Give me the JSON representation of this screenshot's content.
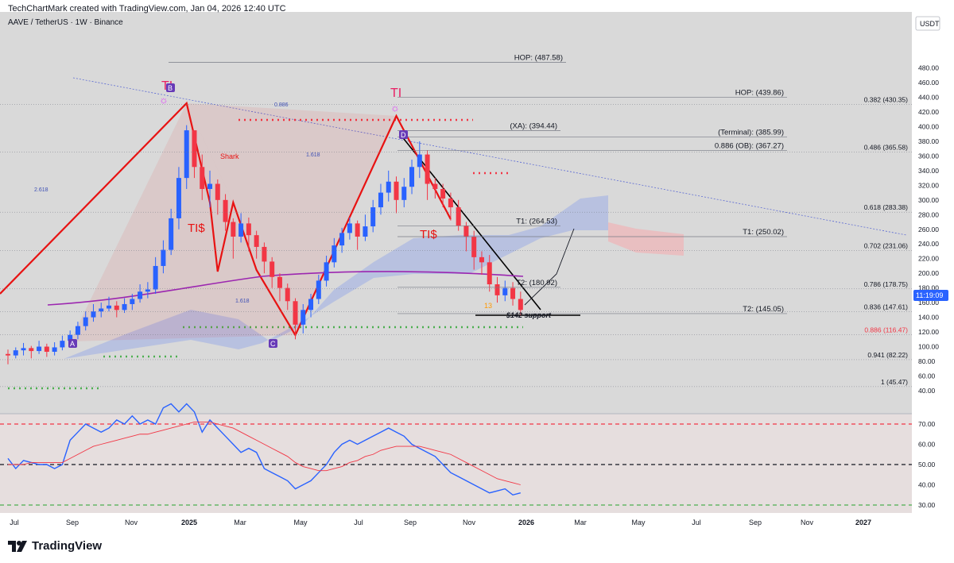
{
  "header": {
    "attribution": "TechChartMark created with TradingView.com, Jan 04, 2026 12:40 UTC",
    "symbol": "AAVE / TetherUS · 1W · Binance"
  },
  "footer": {
    "brand": "TradingView"
  },
  "colors": {
    "up": "#2962ff",
    "down": "#f23645",
    "rsi": "#2962ff",
    "rsi_ma": "#f23645",
    "ema200": "#9c27b0",
    "pattern": "#e81212",
    "cloud_up": "#90a4e8",
    "cloud_down": "#f6a9ad"
  },
  "chart_data": [
    {
      "type": "candlestick",
      "title": "",
      "currency_label": "USDT",
      "current_price": "11:19:09",
      "ylim": [
        20,
        500
      ],
      "y_ticks": [
        40,
        60,
        80,
        100,
        120,
        140,
        160,
        180,
        200,
        220,
        240,
        260,
        280,
        300,
        320,
        340,
        360,
        380,
        400,
        420,
        440,
        460,
        480
      ],
      "x_ticks": [
        "Jul",
        "Sep",
        "Nov",
        "2025",
        "Mar",
        "May",
        "Jul",
        "Sep",
        "Nov",
        "2026",
        "Mar",
        "May",
        "Jul",
        "Sep",
        "Nov",
        "2027"
      ],
      "candles": [
        [
          90,
          88,
          96,
          76
        ],
        [
          88,
          95,
          99,
          84
        ],
        [
          95,
          98,
          105,
          88
        ],
        [
          98,
          94,
          101,
          84
        ],
        [
          94,
          100,
          108,
          90
        ],
        [
          100,
          93,
          104,
          86
        ],
        [
          93,
          99,
          106,
          88
        ],
        [
          99,
          108,
          115,
          95
        ],
        [
          108,
          116,
          122,
          104
        ],
        [
          116,
          128,
          134,
          110
        ],
        [
          128,
          140,
          148,
          122
        ],
        [
          140,
          148,
          158,
          134
        ],
        [
          148,
          152,
          160,
          140
        ],
        [
          152,
          156,
          168,
          148
        ],
        [
          156,
          150,
          162,
          140
        ],
        [
          150,
          158,
          166,
          146
        ],
        [
          158,
          165,
          172,
          150
        ],
        [
          165,
          175,
          185,
          160
        ],
        [
          175,
          178,
          188,
          166
        ],
        [
          178,
          210,
          222,
          172
        ],
        [
          210,
          232,
          245,
          200
        ],
        [
          232,
          275,
          288,
          225
        ],
        [
          275,
          330,
          345,
          260
        ],
        [
          330,
          395,
          402,
          315
        ],
        [
          395,
          345,
          380,
          330
        ],
        [
          345,
          315,
          362,
          300
        ],
        [
          315,
          322,
          340,
          290
        ],
        [
          322,
          300,
          328,
          280
        ],
        [
          300,
          270,
          308,
          258
        ],
        [
          270,
          250,
          275,
          220
        ],
        [
          250,
          268,
          282,
          242
        ],
        [
          268,
          252,
          276,
          230
        ],
        [
          252,
          236,
          258,
          220
        ],
        [
          236,
          216,
          242,
          200
        ],
        [
          216,
          195,
          222,
          180
        ],
        [
          195,
          180,
          200,
          162
        ],
        [
          180,
          162,
          186,
          150
        ],
        [
          162,
          130,
          166,
          110
        ],
        [
          130,
          150,
          158,
          118
        ],
        [
          150,
          165,
          172,
          140
        ],
        [
          165,
          190,
          198,
          158
        ],
        [
          190,
          215,
          224,
          182
        ],
        [
          215,
          238,
          248,
          208
        ],
        [
          238,
          255,
          262,
          228
        ],
        [
          255,
          268,
          276,
          246
        ],
        [
          268,
          250,
          272,
          232
        ],
        [
          250,
          264,
          280,
          244
        ],
        [
          264,
          290,
          300,
          256
        ],
        [
          290,
          310,
          322,
          280
        ],
        [
          310,
          325,
          340,
          298
        ],
        [
          325,
          300,
          332,
          282
        ],
        [
          300,
          318,
          330,
          290
        ],
        [
          318,
          345,
          355,
          308
        ],
        [
          345,
          362,
          380,
          330
        ],
        [
          362,
          322,
          368,
          300
        ],
        [
          322,
          315,
          330,
          302
        ],
        [
          315,
          302,
          322,
          290
        ],
        [
          302,
          290,
          310,
          272
        ],
        [
          290,
          265,
          300,
          258
        ],
        [
          265,
          250,
          270,
          230
        ],
        [
          250,
          222,
          258,
          205
        ],
        [
          222,
          215,
          230,
          198
        ],
        [
          215,
          185,
          225,
          175
        ],
        [
          185,
          170,
          195,
          160
        ],
        [
          170,
          180,
          190,
          162
        ],
        [
          180,
          165,
          188,
          156
        ],
        [
          165,
          150,
          175,
          142
        ]
      ],
      "levels_right": [
        {
          "label": "HOP: (487.58)",
          "price": 487.58
        },
        {
          "label": "HOP: (439.86)",
          "price": 439.86
        },
        {
          "label": "(XA): (394.44)",
          "price": 394.44
        },
        {
          "label": "(Terminal): (385.99)",
          "price": 385.99
        },
        {
          "label": "0.886 (OB): (367.27)",
          "price": 367.27
        },
        {
          "label": "T1: (264.53)",
          "price": 264.53
        },
        {
          "label": "T1: (250.02)",
          "price": 250.02
        },
        {
          "label": "T2: (180.92)",
          "price": 180.92
        },
        {
          "label": "T2: (145.05)",
          "price": 145.05
        }
      ],
      "fib_levels": [
        {
          "label": "0.382 (430.35)",
          "price": 430.35
        },
        {
          "label": "0.486 (365.58)",
          "price": 365.58
        },
        {
          "label": "0.618 (283.38)",
          "price": 283.38
        },
        {
          "label": "0.702 (231.06)",
          "price": 231.06
        },
        {
          "label": "0.786 (178.75)",
          "price": 178.75
        },
        {
          "label": "0.836 (147.61)",
          "price": 147.61
        },
        {
          "label": "0.886 (116.47)",
          "price": 116.47
        },
        {
          "label": "0.941 (82.22)",
          "price": 82.22
        },
        {
          "label": "1 (45.47)",
          "price": 45.47
        }
      ],
      "annotations": {
        "support": "$142 support",
        "shark": "Shark",
        "ti": "TI",
        "ti_dollar": "TI$",
        "points": [
          "A",
          "B",
          "C",
          "D"
        ],
        "ratio_1": "0.886",
        "ratio_2": "1.618",
        "ratio_3": "1.618",
        "ratio_4": "2.618",
        "td_count": "13"
      }
    },
    {
      "type": "line",
      "title": "",
      "ylim": [
        25,
        80
      ],
      "y_ticks": [
        30,
        40,
        50,
        60,
        70
      ],
      "series": [
        {
          "values": [
            53,
            48,
            52,
            51,
            50,
            50,
            48,
            50,
            62,
            66,
            70,
            68,
            66,
            68,
            72,
            70,
            74,
            70,
            72,
            70,
            78,
            80,
            76,
            80,
            76,
            66,
            72,
            68,
            64,
            60,
            56,
            58,
            56,
            48,
            46,
            44,
            42,
            38,
            40,
            42,
            46,
            50,
            56,
            60,
            62,
            60,
            62,
            64,
            66,
            68,
            66,
            64,
            60,
            58,
            56,
            54,
            50,
            46,
            44,
            42,
            40,
            38,
            36,
            37,
            38,
            35,
            36
          ]
        },
        {
          "values": [
            50,
            50,
            50,
            51,
            51,
            51,
            51,
            51,
            53,
            55,
            57,
            59,
            60,
            61,
            62,
            63,
            64,
            65,
            65,
            66,
            67,
            68,
            69,
            70,
            71,
            71,
            71,
            70,
            69,
            68,
            66,
            64,
            62,
            60,
            58,
            56,
            54,
            51,
            49,
            48,
            47,
            47,
            48,
            49,
            51,
            52,
            54,
            55,
            57,
            58,
            59,
            59,
            59,
            59,
            58,
            57,
            56,
            55,
            53,
            51,
            49,
            47,
            45,
            43,
            42,
            41,
            40
          ]
        }
      ],
      "levels": [
        70,
        50,
        30
      ]
    }
  ]
}
